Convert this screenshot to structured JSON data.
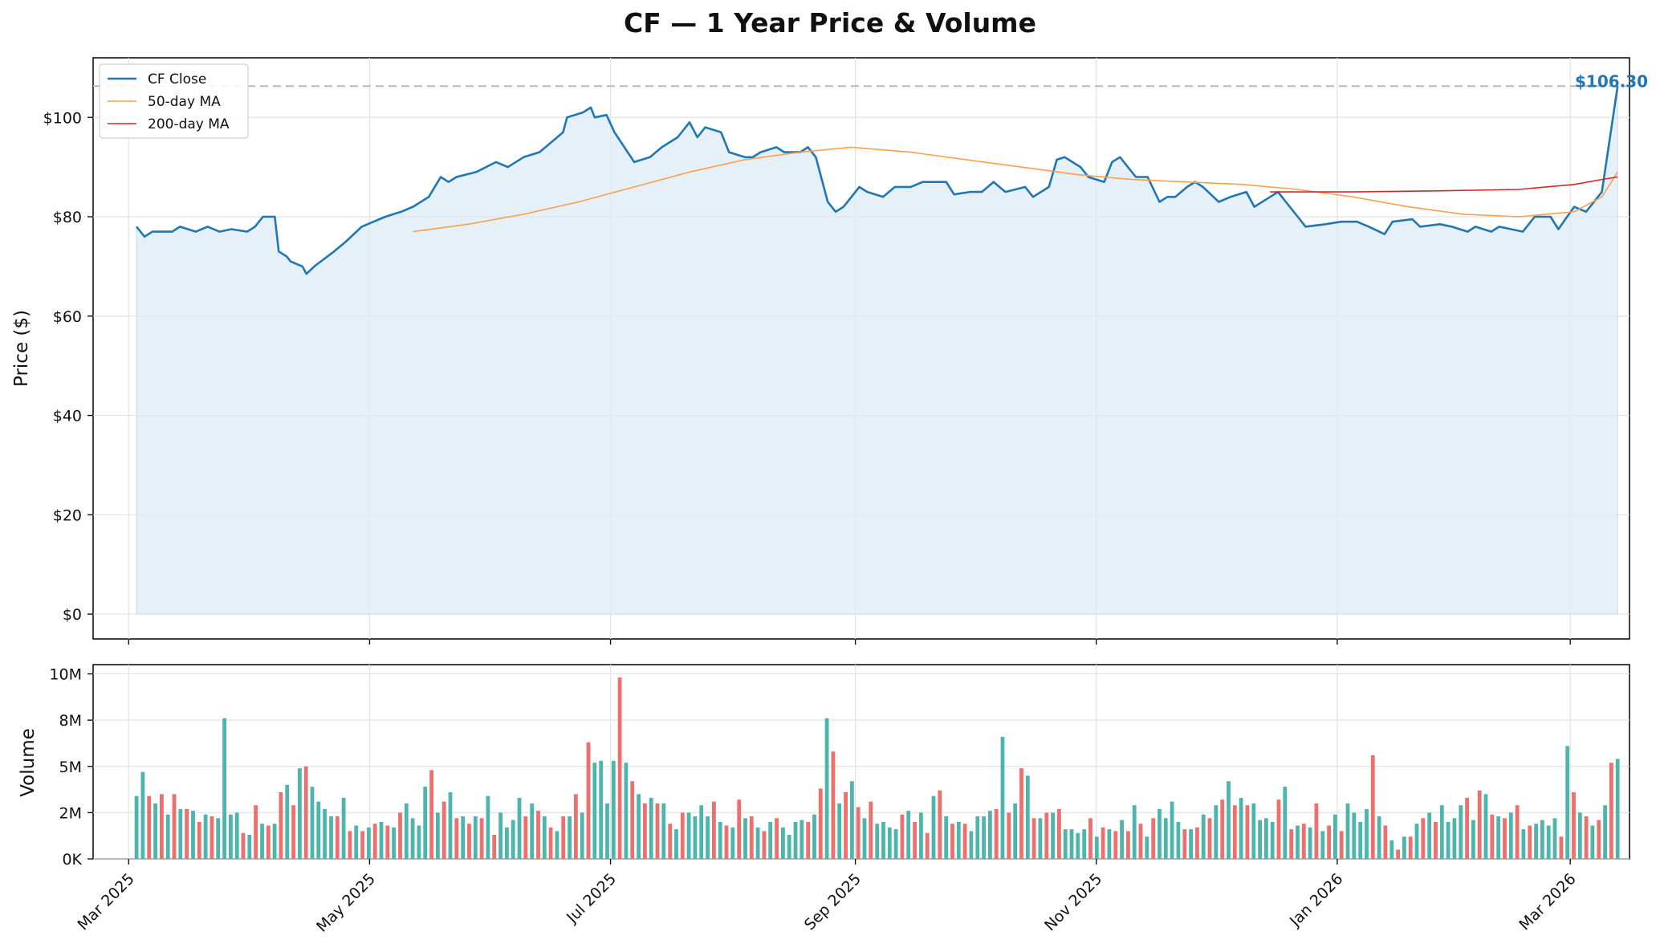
{
  "title": "CF — 1 Year Price & Volume",
  "colors": {
    "close": "#1f77b4",
    "ma50": "#ff9f4a",
    "ma200": "#d62728",
    "fill": "#dce9f5",
    "vol_up": "#4db6ac",
    "vol_down": "#ef6f6c",
    "grid": "#e3e3e3",
    "last_line": "#b8b8b8"
  },
  "last_price_label": "$106.30",
  "chart_data": [
    {
      "type": "line",
      "title": "CF — 1 Year Price & Volume",
      "xlabel": "",
      "ylabel": "Price ($)",
      "ylim": [
        -5,
        112
      ],
      "yticks": [
        0,
        20,
        40,
        60,
        80,
        100
      ],
      "ytick_labels": [
        "$0",
        "$20",
        "$40",
        "$60",
        "$80",
        "$100"
      ],
      "x_range": [
        "2025-02-20",
        "2026-03-16"
      ],
      "xticks": [
        "2025-03-01",
        "2025-05-01",
        "2025-07-01",
        "2025-09-01",
        "2025-11-01",
        "2026-01-01",
        "2026-03-01"
      ],
      "xtick_labels": [
        "Mar 2025",
        "May 2025",
        "Jul 2025",
        "Sep 2025",
        "Nov 2025",
        "Jan 2026",
        "Mar 2026"
      ],
      "grid": true,
      "legend": "top-left",
      "last_value_line": 106.3,
      "series": [
        {
          "name": "CF Close",
          "style": "line-area",
          "points": [
            [
              "2025-03-03",
              78
            ],
            [
              "2025-03-05",
              76
            ],
            [
              "2025-03-07",
              77
            ],
            [
              "2025-03-12",
              77
            ],
            [
              "2025-03-14",
              78
            ],
            [
              "2025-03-18",
              77
            ],
            [
              "2025-03-21",
              78
            ],
            [
              "2025-03-24",
              77
            ],
            [
              "2025-03-27",
              77.5
            ],
            [
              "2025-03-31",
              77
            ],
            [
              "2025-04-02",
              78
            ],
            [
              "2025-04-04",
              80
            ],
            [
              "2025-04-07",
              80
            ],
            [
              "2025-04-08",
              73
            ],
            [
              "2025-04-10",
              72
            ],
            [
              "2025-04-11",
              71
            ],
            [
              "2025-04-14",
              70
            ],
            [
              "2025-04-15",
              68.5
            ],
            [
              "2025-04-17",
              70
            ],
            [
              "2025-04-22",
              73
            ],
            [
              "2025-04-25",
              75
            ],
            [
              "2025-04-29",
              78
            ],
            [
              "2025-05-02",
              79
            ],
            [
              "2025-05-05",
              80
            ],
            [
              "2025-05-07",
              80.5
            ],
            [
              "2025-05-09",
              81
            ],
            [
              "2025-05-12",
              82
            ],
            [
              "2025-05-16",
              84
            ],
            [
              "2025-05-19",
              88
            ],
            [
              "2025-05-21",
              87
            ],
            [
              "2025-05-23",
              88
            ],
            [
              "2025-05-28",
              89
            ],
            [
              "2025-06-02",
              91
            ],
            [
              "2025-06-05",
              90
            ],
            [
              "2025-06-09",
              92
            ],
            [
              "2025-06-13",
              93
            ],
            [
              "2025-06-16",
              95
            ],
            [
              "2025-06-19",
              97
            ],
            [
              "2025-06-20",
              100
            ],
            [
              "2025-06-24",
              101
            ],
            [
              "2025-06-26",
              102
            ],
            [
              "2025-06-27",
              100
            ],
            [
              "2025-06-30",
              100.5
            ],
            [
              "2025-07-02",
              97
            ],
            [
              "2025-07-07",
              91
            ],
            [
              "2025-07-11",
              92
            ],
            [
              "2025-07-14",
              94
            ],
            [
              "2025-07-18",
              96
            ],
            [
              "2025-07-21",
              99
            ],
            [
              "2025-07-23",
              96
            ],
            [
              "2025-07-25",
              98
            ],
            [
              "2025-07-29",
              97
            ],
            [
              "2025-07-31",
              93
            ],
            [
              "2025-08-04",
              92
            ],
            [
              "2025-08-06",
              92
            ],
            [
              "2025-08-08",
              93
            ],
            [
              "2025-08-12",
              94
            ],
            [
              "2025-08-14",
              93
            ],
            [
              "2025-08-18",
              93
            ],
            [
              "2025-08-20",
              94
            ],
            [
              "2025-08-22",
              92
            ],
            [
              "2025-08-25",
              83
            ],
            [
              "2025-08-27",
              81
            ],
            [
              "2025-08-29",
              82
            ],
            [
              "2025-09-02",
              86
            ],
            [
              "2025-09-04",
              85
            ],
            [
              "2025-09-08",
              84
            ],
            [
              "2025-09-11",
              86
            ],
            [
              "2025-09-15",
              86
            ],
            [
              "2025-09-18",
              87
            ],
            [
              "2025-09-22",
              87
            ],
            [
              "2025-09-24",
              87
            ],
            [
              "2025-09-26",
              84.5
            ],
            [
              "2025-09-30",
              85
            ],
            [
              "2025-10-03",
              85
            ],
            [
              "2025-10-06",
              87
            ],
            [
              "2025-10-09",
              85
            ],
            [
              "2025-10-14",
              86
            ],
            [
              "2025-10-16",
              84
            ],
            [
              "2025-10-20",
              86
            ],
            [
              "2025-10-22",
              91.5
            ],
            [
              "2025-10-24",
              92
            ],
            [
              "2025-10-28",
              90
            ],
            [
              "2025-10-30",
              88
            ],
            [
              "2025-11-03",
              87
            ],
            [
              "2025-11-05",
              91
            ],
            [
              "2025-11-07",
              92
            ],
            [
              "2025-11-11",
              88
            ],
            [
              "2025-11-14",
              88
            ],
            [
              "2025-11-17",
              83
            ],
            [
              "2025-11-19",
              84
            ],
            [
              "2025-11-21",
              84
            ],
            [
              "2025-11-24",
              86
            ],
            [
              "2025-11-26",
              87
            ],
            [
              "2025-11-28",
              86
            ],
            [
              "2025-12-02",
              83
            ],
            [
              "2025-12-05",
              84
            ],
            [
              "2025-12-09",
              85
            ],
            [
              "2025-12-11",
              82
            ],
            [
              "2025-12-15",
              84
            ],
            [
              "2025-12-17",
              85
            ],
            [
              "2025-12-19",
              83
            ],
            [
              "2025-12-22",
              80
            ],
            [
              "2025-12-24",
              78
            ],
            [
              "2025-12-29",
              78.5
            ],
            [
              "2026-01-02",
              79
            ],
            [
              "2026-01-06",
              79
            ],
            [
              "2026-01-09",
              78
            ],
            [
              "2026-01-13",
              76.5
            ],
            [
              "2026-01-15",
              79
            ],
            [
              "2026-01-20",
              79.5
            ],
            [
              "2026-01-22",
              78
            ],
            [
              "2026-01-27",
              78.5
            ],
            [
              "2026-01-30",
              78
            ],
            [
              "2026-02-03",
              77
            ],
            [
              "2026-02-05",
              78
            ],
            [
              "2026-02-09",
              77
            ],
            [
              "2026-02-11",
              78
            ],
            [
              "2026-02-17",
              77
            ],
            [
              "2026-02-20",
              80
            ],
            [
              "2026-02-24",
              80
            ],
            [
              "2026-02-26",
              77.5
            ],
            [
              "2026-03-02",
              82
            ],
            [
              "2026-03-05",
              81
            ],
            [
              "2026-03-09",
              85
            ],
            [
              "2026-03-13",
              106.3
            ]
          ]
        },
        {
          "name": "50-day MA",
          "style": "line",
          "points": [
            [
              "2025-05-12",
              77
            ],
            [
              "2025-05-26",
              78.5
            ],
            [
              "2025-06-09",
              80.5
            ],
            [
              "2025-06-23",
              83
            ],
            [
              "2025-07-07",
              86
            ],
            [
              "2025-07-21",
              89
            ],
            [
              "2025-08-04",
              91.5
            ],
            [
              "2025-08-18",
              93
            ],
            [
              "2025-08-31",
              94
            ],
            [
              "2025-09-15",
              93
            ],
            [
              "2025-09-29",
              91.5
            ],
            [
              "2025-10-13",
              90
            ],
            [
              "2025-10-27",
              88.5
            ],
            [
              "2025-11-10",
              87.5
            ],
            [
              "2025-11-24",
              87
            ],
            [
              "2025-12-08",
              86.5
            ],
            [
              "2025-12-22",
              85.5
            ],
            [
              "2026-01-05",
              84
            ],
            [
              "2026-01-19",
              82
            ],
            [
              "2026-02-02",
              80.5
            ],
            [
              "2026-02-16",
              80
            ],
            [
              "2026-03-02",
              81
            ],
            [
              "2026-03-09",
              84
            ],
            [
              "2026-03-13",
              89
            ]
          ]
        },
        {
          "name": "200-day MA",
          "style": "line",
          "points": [
            [
              "2025-12-15",
              85
            ],
            [
              "2026-01-05",
              85
            ],
            [
              "2026-01-26",
              85.2
            ],
            [
              "2026-02-16",
              85.5
            ],
            [
              "2026-03-02",
              86.5
            ],
            [
              "2026-03-09",
              87.5
            ],
            [
              "2026-03-13",
              88
            ]
          ]
        }
      ]
    },
    {
      "type": "bar",
      "xlabel": "",
      "ylabel": "Volume",
      "ylim": [
        0,
        10500000
      ],
      "yticks": [
        0,
        2500000,
        5000000,
        7500000,
        10000000
      ],
      "ytick_labels": [
        "0K",
        "2M",
        "5M",
        "8M",
        "10M"
      ],
      "xticks": [
        "2025-03-01",
        "2025-05-01",
        "2025-07-01",
        "2025-09-01",
        "2025-11-01",
        "2026-01-01",
        "2026-03-01"
      ],
      "xtick_labels": [
        "Mar 2025",
        "May 2025",
        "Jul 2025",
        "Sep 2025",
        "Nov 2025",
        "Jan 2026",
        "Mar 2026"
      ],
      "grid": true,
      "series": [
        {
          "values_millions": [
            3.4,
            4.7,
            3.4,
            3.0,
            3.5,
            2.4,
            3.5,
            2.7,
            2.7,
            2.6,
            2.0,
            2.4,
            2.3,
            2.2,
            7.6,
            2.4,
            2.5,
            1.4,
            1.3,
            2.9,
            1.9,
            1.8,
            1.9,
            3.6,
            4.0,
            2.9,
            4.9,
            5.0,
            3.9,
            3.1,
            2.7,
            2.3,
            2.3,
            3.3,
            1.5,
            1.8,
            1.5,
            1.7,
            1.9,
            2.0,
            1.8,
            1.7,
            2.5,
            3.0,
            2.2,
            1.8,
            3.9,
            4.8,
            2.5,
            3.1,
            3.6,
            2.2,
            2.3,
            1.9,
            2.3,
            2.2,
            3.4,
            1.3,
            2.5,
            1.7,
            2.1,
            3.3,
            2.3,
            3.0,
            2.6,
            2.3,
            1.7,
            1.5,
            2.3,
            2.3,
            3.5,
            2.5,
            6.3,
            5.2,
            5.3,
            3.0,
            5.3,
            9.8,
            5.2,
            4.2,
            3.5,
            3.0,
            3.3,
            3.0,
            3.0,
            1.9,
            1.6,
            2.5,
            2.5,
            2.3,
            2.9,
            2.3,
            3.1,
            2.0,
            1.8,
            1.7,
            3.2,
            2.2,
            2.3,
            1.7,
            1.5,
            2.0,
            2.2,
            1.7,
            1.3,
            2.0,
            2.1,
            2.0,
            2.4,
            3.8,
            7.6,
            5.8,
            3.0,
            3.6,
            4.2,
            2.8,
            2.2,
            3.1,
            1.9,
            2.0,
            1.7,
            1.6,
            2.4,
            2.6,
            2.0,
            2.5,
            1.4,
            3.4,
            3.7,
            2.3,
            1.9,
            2.0,
            1.9,
            1.5,
            2.3,
            2.3,
            2.6,
            2.7,
            6.6,
            2.5,
            3.0,
            4.9,
            4.5,
            2.2,
            2.2,
            2.5,
            2.5,
            2.7,
            1.6,
            1.6,
            1.4,
            1.6,
            2.2,
            1.2,
            1.7,
            1.6,
            1.5,
            2.1,
            1.5,
            2.9,
            1.9,
            1.2,
            2.2,
            2.7,
            2.2,
            3.1,
            2.0,
            1.6,
            1.6,
            1.7,
            2.4,
            2.2,
            2.9,
            3.2,
            4.2,
            2.9,
            3.3,
            2.9,
            3.0,
            2.1,
            2.2,
            2.0,
            3.2,
            3.9,
            1.6,
            1.8,
            1.9,
            1.7,
            3.0,
            1.5,
            1.8,
            2.4,
            1.5,
            3.0,
            2.5,
            2.0,
            2.7,
            5.6,
            2.3,
            1.8,
            1.0,
            0.5,
            1.2,
            1.2,
            1.9,
            2.2,
            2.5,
            2.0,
            2.9,
            2.0,
            2.2,
            2.9,
            3.3,
            2.1,
            3.7,
            3.5,
            2.4,
            2.3,
            2.2,
            2.5,
            2.9,
            1.6,
            1.8,
            1.9,
            2.1,
            1.8,
            2.2,
            1.2,
            6.1,
            3.6,
            2.5,
            2.3,
            1.8,
            2.1,
            2.9,
            5.2,
            5.4
          ],
          "colors_by_bar": "alternating up (teal) / down (red) sessions"
        }
      ]
    }
  ]
}
